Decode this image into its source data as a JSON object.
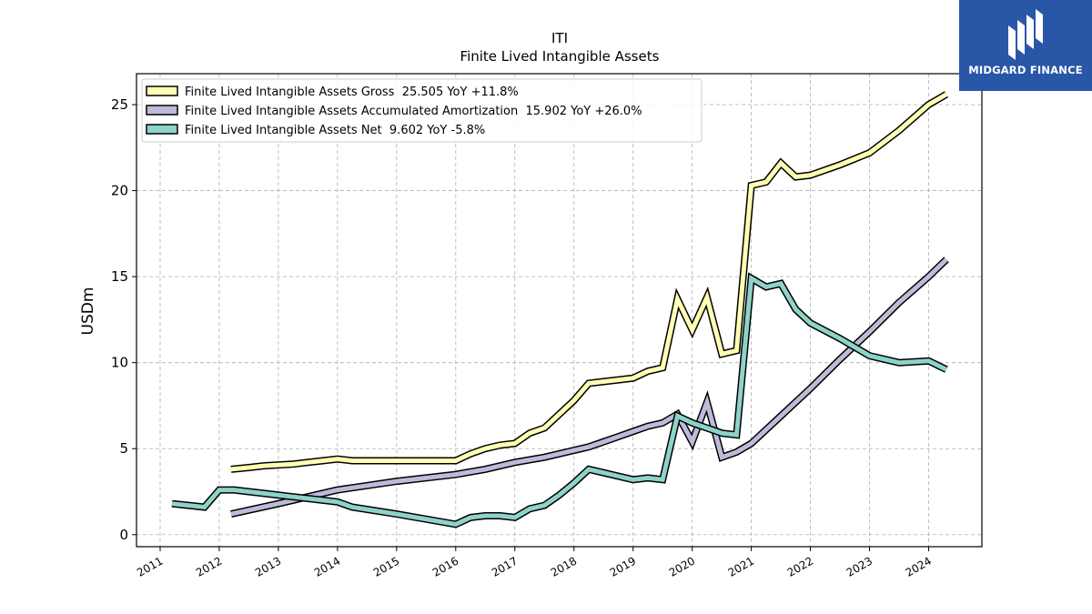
{
  "chart_data": {
    "type": "line",
    "title": "ITI",
    "subtitle": "Finite Lived Intangible Assets",
    "xlabel": "",
    "ylabel": "USDm",
    "xlim": [
      2010.6,
      2024.9
    ],
    "ylim": [
      -0.7,
      26.8
    ],
    "x_ticks": [
      "2011",
      "2012",
      "2013",
      "2014",
      "2015",
      "2016",
      "2017",
      "2018",
      "2019",
      "2020",
      "2021",
      "2022",
      "2023",
      "2024"
    ],
    "y_ticks": [
      "0",
      "5",
      "10",
      "15",
      "20",
      "25"
    ],
    "grid": true,
    "legend_position": "top-left",
    "series": [
      {
        "name": "Finite Lived Intangible Assets Gross  25.505 YoY +11.8%",
        "color": "#ffffb3",
        "points": [
          [
            2012.2,
            3.8
          ],
          [
            2012.5,
            3.9
          ],
          [
            2012.75,
            4.0
          ],
          [
            2013.25,
            4.1
          ],
          [
            2013.5,
            4.2
          ],
          [
            2013.75,
            4.3
          ],
          [
            2014.0,
            4.4
          ],
          [
            2014.25,
            4.3
          ],
          [
            2016.0,
            4.3
          ],
          [
            2016.25,
            4.7
          ],
          [
            2016.5,
            5.0
          ],
          [
            2016.75,
            5.2
          ],
          [
            2017.0,
            5.3
          ],
          [
            2017.25,
            5.9
          ],
          [
            2017.5,
            6.2
          ],
          [
            2017.75,
            7.0
          ],
          [
            2018.0,
            7.8
          ],
          [
            2018.25,
            8.8
          ],
          [
            2018.5,
            8.9
          ],
          [
            2018.75,
            9.0
          ],
          [
            2019.0,
            9.1
          ],
          [
            2019.25,
            9.5
          ],
          [
            2019.5,
            9.7
          ],
          [
            2019.75,
            13.7
          ],
          [
            2020.0,
            11.9
          ],
          [
            2020.25,
            13.8
          ],
          [
            2020.5,
            10.5
          ],
          [
            2020.75,
            10.7
          ],
          [
            2021.0,
            20.3
          ],
          [
            2021.25,
            20.5
          ],
          [
            2021.5,
            21.6
          ],
          [
            2021.75,
            20.8
          ],
          [
            2022.0,
            20.9
          ],
          [
            2022.5,
            21.5
          ],
          [
            2023.0,
            22.2
          ],
          [
            2023.5,
            23.5
          ],
          [
            2024.0,
            25.0
          ],
          [
            2024.3,
            25.6
          ]
        ]
      },
      {
        "name": "Finite Lived Intangible Assets Accumulated Amortization  15.902 YoY +26.0%",
        "color": "#bebada",
        "points": [
          [
            2012.2,
            1.2
          ],
          [
            2013.0,
            1.8
          ],
          [
            2014.0,
            2.6
          ],
          [
            2015.0,
            3.1
          ],
          [
            2016.0,
            3.5
          ],
          [
            2016.5,
            3.8
          ],
          [
            2017.0,
            4.2
          ],
          [
            2017.5,
            4.5
          ],
          [
            2018.0,
            4.9
          ],
          [
            2018.25,
            5.1
          ],
          [
            2018.5,
            5.4
          ],
          [
            2018.75,
            5.7
          ],
          [
            2019.0,
            6.0
          ],
          [
            2019.25,
            6.3
          ],
          [
            2019.5,
            6.5
          ],
          [
            2019.75,
            7.0
          ],
          [
            2020.0,
            5.4
          ],
          [
            2020.25,
            7.7
          ],
          [
            2020.5,
            4.5
          ],
          [
            2020.75,
            4.8
          ],
          [
            2021.0,
            5.3
          ],
          [
            2021.5,
            6.9
          ],
          [
            2022.0,
            8.5
          ],
          [
            2022.5,
            10.2
          ],
          [
            2023.0,
            11.8
          ],
          [
            2023.5,
            13.5
          ],
          [
            2024.0,
            15.0
          ],
          [
            2024.3,
            16.0
          ]
        ]
      },
      {
        "name": "Finite Lived Intangible Assets Net  9.602 YoY -5.8%",
        "color": "#8dd3c7",
        "points": [
          [
            2011.2,
            1.8
          ],
          [
            2011.75,
            1.6
          ],
          [
            2012.0,
            2.6
          ],
          [
            2012.25,
            2.6
          ],
          [
            2012.75,
            2.4
          ],
          [
            2013.25,
            2.2
          ],
          [
            2013.75,
            2.0
          ],
          [
            2014.0,
            1.9
          ],
          [
            2014.25,
            1.6
          ],
          [
            2015.0,
            1.2
          ],
          [
            2016.0,
            0.6
          ],
          [
            2016.25,
            1.0
          ],
          [
            2016.5,
            1.1
          ],
          [
            2016.75,
            1.1
          ],
          [
            2017.0,
            1.0
          ],
          [
            2017.25,
            1.5
          ],
          [
            2017.5,
            1.7
          ],
          [
            2017.75,
            2.3
          ],
          [
            2018.0,
            3.0
          ],
          [
            2018.25,
            3.8
          ],
          [
            2018.5,
            3.6
          ],
          [
            2018.75,
            3.4
          ],
          [
            2019.0,
            3.2
          ],
          [
            2019.25,
            3.3
          ],
          [
            2019.5,
            3.2
          ],
          [
            2019.75,
            6.9
          ],
          [
            2020.0,
            6.5
          ],
          [
            2020.25,
            6.2
          ],
          [
            2020.5,
            5.9
          ],
          [
            2020.75,
            5.8
          ],
          [
            2021.0,
            14.9
          ],
          [
            2021.25,
            14.4
          ],
          [
            2021.5,
            14.6
          ],
          [
            2021.75,
            13.1
          ],
          [
            2022.0,
            12.3
          ],
          [
            2022.5,
            11.4
          ],
          [
            2023.0,
            10.4
          ],
          [
            2023.5,
            10.0
          ],
          [
            2024.0,
            10.1
          ],
          [
            2024.3,
            9.6
          ]
        ]
      }
    ]
  },
  "logo": {
    "text": "MIDGARD FINANCE",
    "background": "#2a56a8"
  }
}
